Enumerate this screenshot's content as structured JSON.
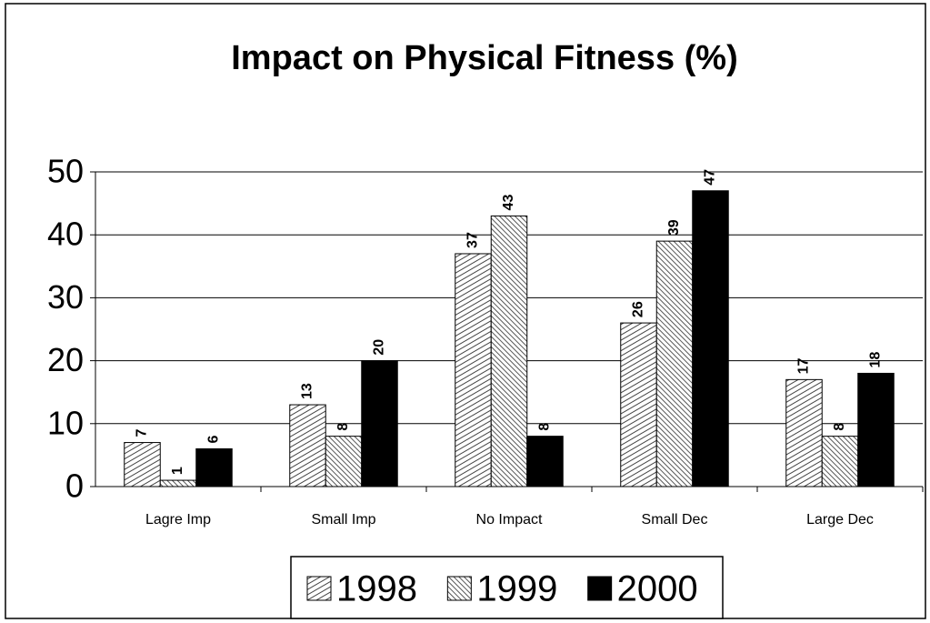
{
  "chart_data": {
    "type": "bar",
    "title": "Impact on Physical Fitness (%)",
    "categories": [
      "Lagre Imp",
      "Small Imp",
      "No Impact",
      "Small Dec",
      "Large Dec"
    ],
    "series": [
      {
        "name": "1998",
        "color": "#555555",
        "pattern": "hatch-right",
        "values": [
          7,
          13,
          37,
          26,
          17
        ]
      },
      {
        "name": "1999",
        "color": "#555555",
        "pattern": "hatch-left",
        "values": [
          1,
          8,
          43,
          39,
          8
        ]
      },
      {
        "name": "2000",
        "color": "#000000",
        "pattern": "solid",
        "values": [
          6,
          20,
          8,
          47,
          18
        ]
      }
    ],
    "ylim": [
      0,
      50
    ],
    "yticks": [
      0,
      10,
      20,
      30,
      40,
      50
    ],
    "grid": true,
    "legend": "bottom"
  }
}
